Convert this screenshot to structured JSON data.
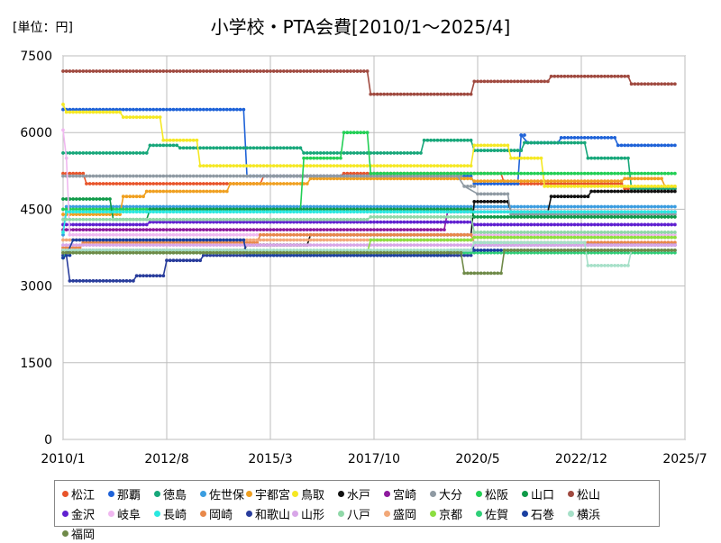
{
  "unit_label": "[単位：円]",
  "chart_data": {
    "type": "line",
    "title": "小学校・PTA会費[2010/1～2025/4]",
    "xlabel": "",
    "ylabel": "",
    "x_ticks": [
      "2010/1",
      "2012/8",
      "2015/3",
      "2017/10",
      "2020/5",
      "2022/12",
      "2025/7"
    ],
    "x_range": [
      "2010-01",
      "2025-07"
    ],
    "y_ticks": [
      0,
      1500,
      3000,
      4500,
      6000,
      7500
    ],
    "ylim": [
      0,
      7500
    ],
    "grid": true,
    "legend_position": "bottom",
    "series": [
      {
        "name": "松江",
        "color": "#e8542a",
        "points": [
          [
            "2010-01",
            5200
          ],
          [
            "2010-07",
            5200
          ],
          [
            "2010-08",
            5000
          ],
          [
            "2014-12",
            5000
          ],
          [
            "2015-01",
            5150
          ],
          [
            "2016-12",
            5150
          ],
          [
            "2017-01",
            5200
          ],
          [
            "2020-12",
            5200
          ],
          [
            "2021-01",
            5000
          ],
          [
            "2023-12",
            5000
          ],
          [
            "2024-01",
            4900
          ],
          [
            "2025-04",
            4900
          ]
        ]
      },
      {
        "name": "那覇",
        "color": "#1e62d8",
        "points": [
          [
            "2010-01",
            6450
          ],
          [
            "2014-07",
            6450
          ],
          [
            "2014-08",
            5150
          ],
          [
            "2020-03",
            5150
          ],
          [
            "2020-04",
            5000
          ],
          [
            "2021-05",
            5000
          ],
          [
            "2021-06",
            5950
          ],
          [
            "2021-08",
            5800
          ],
          [
            "2022-05",
            5800
          ],
          [
            "2022-06",
            5900
          ],
          [
            "2023-10",
            5900
          ],
          [
            "2023-11",
            5750
          ],
          [
            "2025-04",
            5750
          ]
        ]
      },
      {
        "name": "徳島",
        "color": "#17a77a",
        "points": [
          [
            "2010-01",
            5600
          ],
          [
            "2012-02",
            5600
          ],
          [
            "2012-03",
            5750
          ],
          [
            "2012-11",
            5750
          ],
          [
            "2012-12",
            5700
          ],
          [
            "2015-12",
            5700
          ],
          [
            "2016-01",
            5600
          ],
          [
            "2018-12",
            5600
          ],
          [
            "2019-01",
            5850
          ],
          [
            "2020-03",
            5850
          ],
          [
            "2020-04",
            5650
          ],
          [
            "2021-06",
            5650
          ],
          [
            "2021-07",
            5800
          ],
          [
            "2023-01",
            5800
          ],
          [
            "2023-02",
            5500
          ],
          [
            "2024-02",
            5500
          ],
          [
            "2024-03",
            4900
          ],
          [
            "2025-04",
            4900
          ]
        ]
      },
      {
        "name": "佐世保",
        "color": "#3b9de0",
        "points": [
          [
            "2010-01",
            4000
          ],
          [
            "2010-02",
            4550
          ],
          [
            "2025-04",
            4550
          ]
        ]
      },
      {
        "name": "宇都宮",
        "color": "#f0a020",
        "points": [
          [
            "2010-01",
            4400
          ],
          [
            "2011-06",
            4400
          ],
          [
            "2011-07",
            4750
          ],
          [
            "2012-01",
            4750
          ],
          [
            "2012-02",
            4850
          ],
          [
            "2014-02",
            4850
          ],
          [
            "2014-03",
            5000
          ],
          [
            "2016-02",
            5000
          ],
          [
            "2016-03",
            5100
          ],
          [
            "2020-03",
            5100
          ],
          [
            "2020-04",
            5050
          ],
          [
            "2023-12",
            5050
          ],
          [
            "2024-01",
            5100
          ],
          [
            "2024-12",
            5100
          ],
          [
            "2025-01",
            4950
          ],
          [
            "2025-04",
            4950
          ]
        ]
      },
      {
        "name": "鳥取",
        "color": "#f5e823",
        "points": [
          [
            "2010-01",
            6550
          ],
          [
            "2010-02",
            6400
          ],
          [
            "2011-06",
            6400
          ],
          [
            "2011-07",
            6300
          ],
          [
            "2012-06",
            6300
          ],
          [
            "2012-07",
            5850
          ],
          [
            "2013-05",
            5850
          ],
          [
            "2013-06",
            5350
          ],
          [
            "2020-03",
            5350
          ],
          [
            "2020-04",
            5750
          ],
          [
            "2021-02",
            5750
          ],
          [
            "2021-03",
            5500
          ],
          [
            "2021-12",
            5500
          ],
          [
            "2022-01",
            4950
          ],
          [
            "2025-04",
            4950
          ]
        ]
      },
      {
        "name": "水戸",
        "color": "#111111",
        "points": [
          [
            "2010-01",
            3700
          ],
          [
            "2014-07",
            3700
          ],
          [
            "2014-08",
            3800
          ],
          [
            "2016-02",
            3800
          ],
          [
            "2016-03",
            4000
          ],
          [
            "2020-03",
            4000
          ],
          [
            "2020-04",
            4650
          ],
          [
            "2021-02",
            4650
          ],
          [
            "2021-03",
            4450
          ],
          [
            "2022-02",
            4450
          ],
          [
            "2022-03",
            4750
          ],
          [
            "2023-02",
            4750
          ],
          [
            "2023-03",
            4850
          ],
          [
            "2025-04",
            4850
          ]
        ]
      },
      {
        "name": "宮崎",
        "color": "#8e1a9e",
        "points": [
          [
            "2010-01",
            4100
          ],
          [
            "2019-07",
            4100
          ],
          [
            "2019-08",
            4450
          ],
          [
            "2025-04",
            4450
          ]
        ]
      },
      {
        "name": "大分",
        "color": "#8f9aa3",
        "points": [
          [
            "2010-01",
            5150
          ],
          [
            "2019-11",
            5150
          ],
          [
            "2020-01",
            4950
          ],
          [
            "2020-05",
            4800
          ],
          [
            "2021-02",
            4800
          ],
          [
            "2021-03",
            4400
          ],
          [
            "2025-04",
            4400
          ]
        ]
      },
      {
        "name": "松阪",
        "color": "#22cf55",
        "points": [
          [
            "2010-01",
            4500
          ],
          [
            "2015-12",
            4500
          ],
          [
            "2016-01",
            5500
          ],
          [
            "2016-12",
            5500
          ],
          [
            "2017-01",
            6000
          ],
          [
            "2017-08",
            6000
          ],
          [
            "2017-09",
            5200
          ],
          [
            "2025-04",
            5200
          ]
        ]
      },
      {
        "name": "山口",
        "color": "#0f9a48",
        "points": [
          [
            "2010-01",
            4700
          ],
          [
            "2011-03",
            4700
          ],
          [
            "2011-04",
            4300
          ],
          [
            "2012-02",
            4300
          ],
          [
            "2012-03",
            4500
          ],
          [
            "2020-03",
            4500
          ],
          [
            "2020-04",
            4350
          ],
          [
            "2025-04",
            4350
          ]
        ]
      },
      {
        "name": "松山",
        "color": "#a04a40",
        "points": [
          [
            "2010-01",
            7200
          ],
          [
            "2017-08",
            7200
          ],
          [
            "2017-09",
            6750
          ],
          [
            "2020-03",
            6750
          ],
          [
            "2020-04",
            7000
          ],
          [
            "2022-02",
            7000
          ],
          [
            "2022-03",
            7100
          ],
          [
            "2024-02",
            7100
          ],
          [
            "2024-03",
            6950
          ],
          [
            "2025-04",
            6950
          ]
        ]
      },
      {
        "name": "金沢",
        "color": "#6020d0",
        "points": [
          [
            "2010-01",
            4200
          ],
          [
            "2012-02",
            4200
          ],
          [
            "2012-03",
            4250
          ],
          [
            "2020-03",
            4250
          ],
          [
            "2020-04",
            4200
          ],
          [
            "2025-04",
            4200
          ]
        ]
      },
      {
        "name": "岐阜",
        "color": "#f0b8f0",
        "points": [
          [
            "2010-01",
            6050
          ],
          [
            "2010-02",
            5500
          ],
          [
            "2010-03",
            4000
          ],
          [
            "2025-04",
            4000
          ]
        ]
      },
      {
        "name": "長崎",
        "color": "#2ae8e0",
        "points": [
          [
            "2010-01",
            4050
          ],
          [
            "2010-02",
            4450
          ],
          [
            "2025-04",
            4450
          ]
        ]
      },
      {
        "name": "岡崎",
        "color": "#e8884a",
        "points": [
          [
            "2010-01",
            3750
          ],
          [
            "2010-06",
            3750
          ],
          [
            "2010-07",
            3850
          ],
          [
            "2014-11",
            3850
          ],
          [
            "2014-12",
            4000
          ],
          [
            "2020-03",
            4000
          ],
          [
            "2020-04",
            3850
          ],
          [
            "2025-04",
            3850
          ]
        ]
      },
      {
        "name": "和歌山",
        "color": "#283c9c",
        "points": [
          [
            "2010-01",
            3600
          ],
          [
            "2010-02",
            3600
          ],
          [
            "2010-03",
            3100
          ],
          [
            "2011-10",
            3100
          ],
          [
            "2011-11",
            3200
          ],
          [
            "2012-07",
            3200
          ],
          [
            "2012-08",
            3500
          ],
          [
            "2013-06",
            3500
          ],
          [
            "2013-07",
            3600
          ],
          [
            "2020-03",
            3600
          ],
          [
            "2020-04",
            3800
          ],
          [
            "2025-04",
            3800
          ]
        ]
      },
      {
        "name": "山形",
        "color": "#d8a6e8",
        "points": [
          [
            "2010-01",
            3800
          ],
          [
            "2025-04",
            3800
          ]
        ]
      },
      {
        "name": "八戸",
        "color": "#90d8a8",
        "points": [
          [
            "2010-01",
            4300
          ],
          [
            "2017-08",
            4300
          ],
          [
            "2017-09",
            4350
          ],
          [
            "2020-03",
            4350
          ],
          [
            "2020-04",
            4050
          ],
          [
            "2025-04",
            4050
          ]
        ]
      },
      {
        "name": "盛岡",
        "color": "#f2a878",
        "points": [
          [
            "2010-01",
            3900
          ],
          [
            "2020-03",
            3900
          ],
          [
            "2020-04",
            3950
          ],
          [
            "2025-04",
            3950
          ]
        ]
      },
      {
        "name": "京都",
        "color": "#8cde40",
        "points": [
          [
            "2010-01",
            3650
          ],
          [
            "2017-08",
            3650
          ],
          [
            "2017-09",
            3900
          ],
          [
            "2020-03",
            3900
          ],
          [
            "2020-04",
            3950
          ],
          [
            "2025-04",
            3950
          ]
        ]
      },
      {
        "name": "佐賀",
        "color": "#2fcf78",
        "points": [
          [
            "2010-01",
            3550
          ],
          [
            "2010-02",
            3650
          ],
          [
            "2025-04",
            3650
          ]
        ]
      },
      {
        "name": "石巻",
        "color": "#1a3fa0",
        "points": [
          [
            "2010-01",
            3550
          ],
          [
            "2010-02",
            3600
          ],
          [
            "2010-04",
            3900
          ],
          [
            "2014-07",
            3900
          ],
          [
            "2014-08",
            3600
          ],
          [
            "2019-08",
            3600
          ],
          [
            "2019-09",
            3700
          ],
          [
            "2025-04",
            3700
          ]
        ]
      },
      {
        "name": "横浜",
        "color": "#a6e0c8",
        "points": [
          [
            "2010-01",
            3700
          ],
          [
            "2020-03",
            3700
          ],
          [
            "2020-04",
            3850
          ],
          [
            "2023-01",
            3850
          ],
          [
            "2023-02",
            3400
          ],
          [
            "2024-02",
            3400
          ],
          [
            "2024-03",
            3700
          ],
          [
            "2025-04",
            3700
          ]
        ]
      },
      {
        "name": "福岡",
        "color": "#6f8a48",
        "points": [
          [
            "2010-01",
            3650
          ],
          [
            "2019-12",
            3650
          ],
          [
            "2020-01",
            3250
          ],
          [
            "2020-12",
            3250
          ],
          [
            "2021-01",
            3700
          ],
          [
            "2025-04",
            3700
          ]
        ]
      }
    ]
  }
}
